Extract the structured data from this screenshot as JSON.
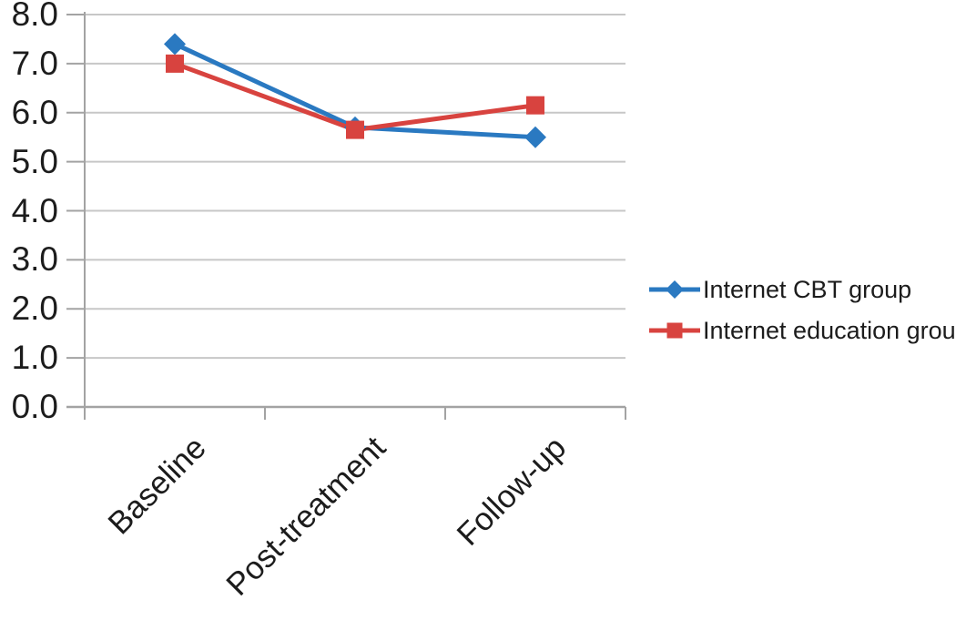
{
  "chart_data": {
    "type": "line",
    "title": "",
    "xlabel": "",
    "ylabel": "",
    "categories": [
      "Baseline",
      "Post-treatment",
      "Follow-up"
    ],
    "series": [
      {
        "name": "Internet CBT group",
        "color": "#2A79C1",
        "marker": "diamond",
        "values": [
          7.4,
          5.7,
          5.5
        ]
      },
      {
        "name": "Internet education group",
        "color": "#D8433F",
        "marker": "square",
        "values": [
          7.0,
          5.65,
          6.15
        ]
      }
    ],
    "ylim": [
      0,
      8
    ],
    "ytick_step": 1.0,
    "ytick_labels": [
      "0.0",
      "1.0",
      "2.0",
      "3.0",
      "4.0",
      "5.0",
      "6.0",
      "7.0",
      "8.0"
    ],
    "grid": true,
    "legend_position": "right-middle"
  },
  "colors": {
    "series_internet_cbt": "#2A79C1",
    "series_internet_education": "#D8433F",
    "gridline": "#c7c7c7",
    "axis": "#a3a3a3",
    "text": "#1c1c1c",
    "background": "#ffffff"
  }
}
